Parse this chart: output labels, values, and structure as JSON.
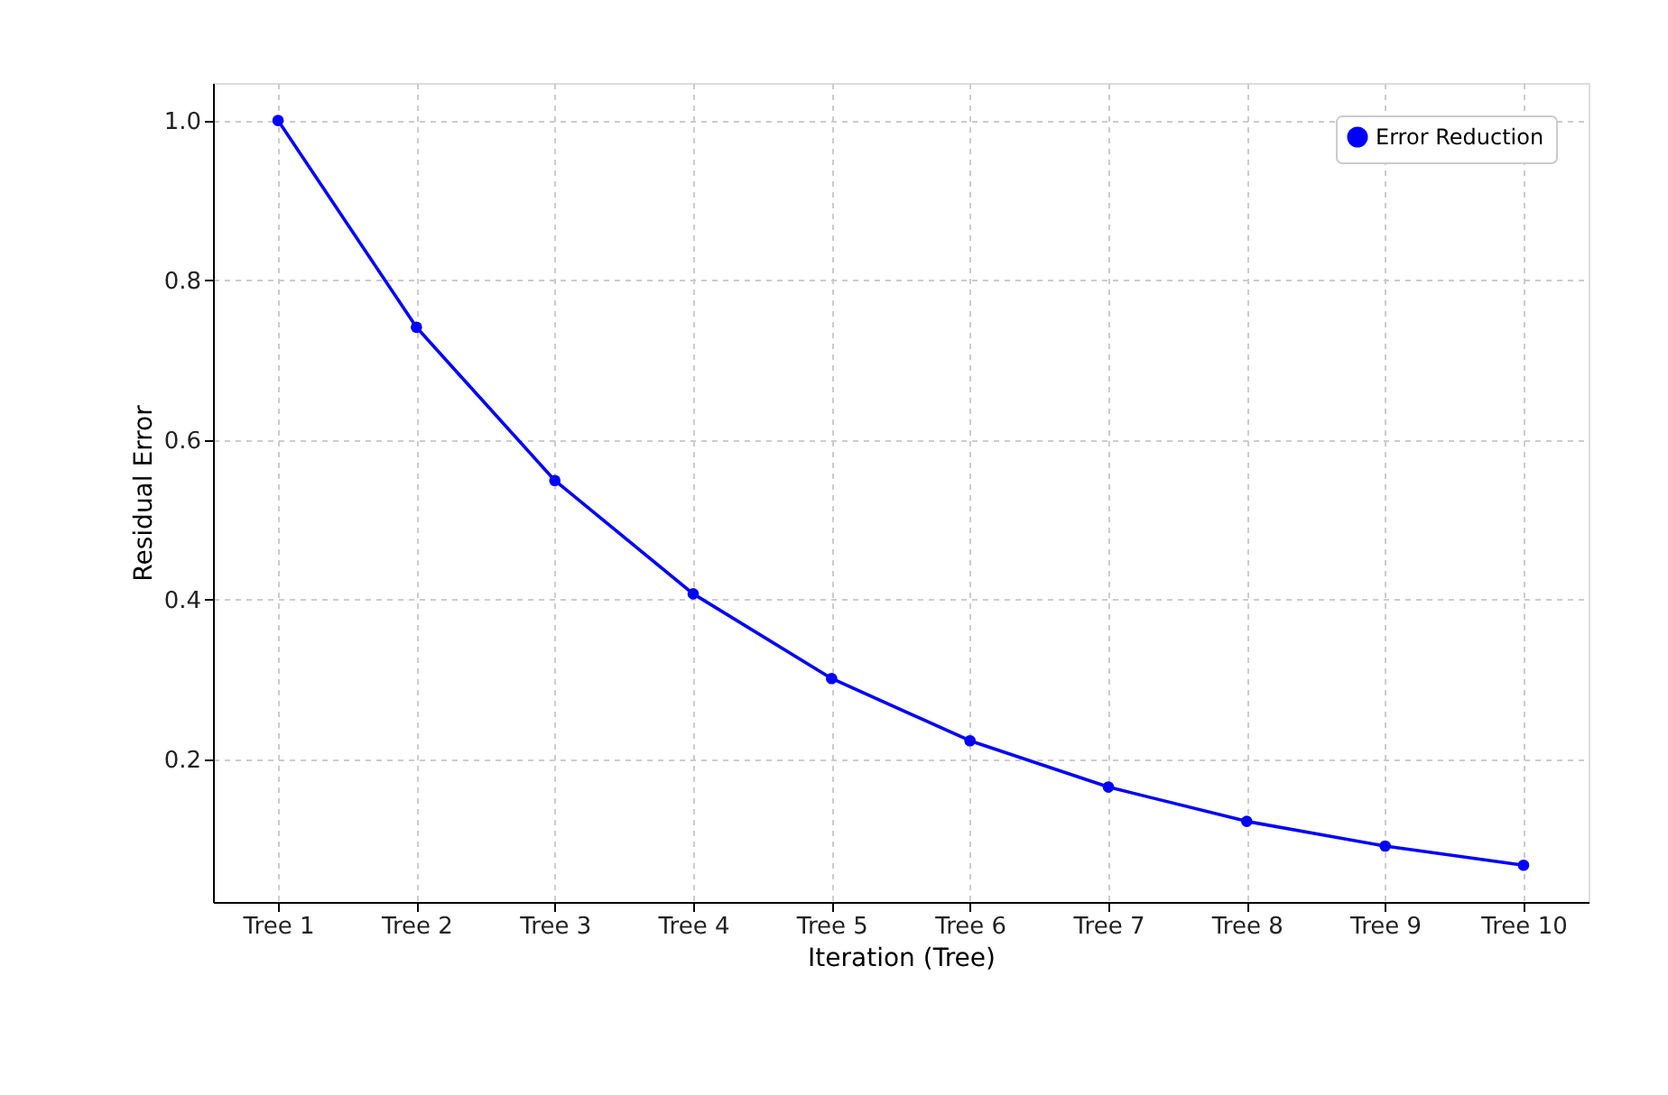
{
  "chart_data": {
    "type": "line",
    "xlabel": "Iteration (Tree)",
    "ylabel": "Residual Error",
    "categories": [
      "Tree 1",
      "Tree 2",
      "Tree 3",
      "Tree 4",
      "Tree 5",
      "Tree 6",
      "Tree 7",
      "Tree 8",
      "Tree 9",
      "Tree 10"
    ],
    "series": [
      {
        "name": "Error Reduction",
        "color": "#0000ff",
        "values": [
          1.0,
          0.741,
          0.549,
          0.407,
          0.301,
          0.223,
          0.165,
          0.122,
          0.091,
          0.067
        ]
      }
    ],
    "ylim": [
      0.021,
      1.047
    ],
    "yticks": [
      0.2,
      0.4,
      0.6,
      0.8,
      {
        "value": 1,
        "label": "1.0"
      }
    ],
    "grid": true,
    "legend": "top right",
    "marker": "circle",
    "line_style": "solid"
  }
}
